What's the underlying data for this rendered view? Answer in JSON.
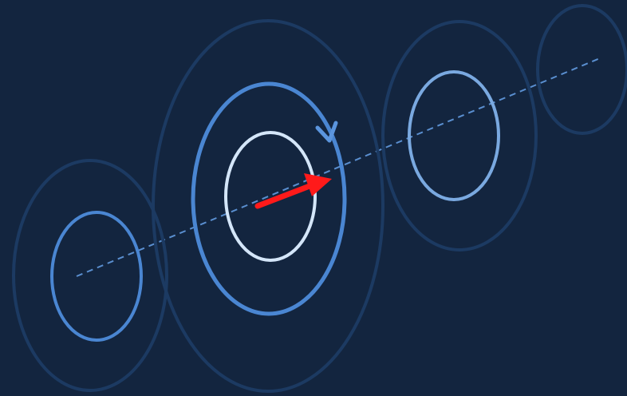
{
  "colors": {
    "background": "#13253f",
    "outer_ring": "#1c3a62",
    "mid_ring": "#4a86d2",
    "mid_ring_light": "#7aa9e0",
    "inner_ring": "#d4e6f9",
    "axis_line": "#5a8fd0",
    "arrow": "#ff1a1a",
    "rotation_arrow": "#5b95de"
  },
  "icons": {
    "rotation": "clockwise-rotation-arrow-icon",
    "direction": "red-direction-arrow-icon"
  }
}
